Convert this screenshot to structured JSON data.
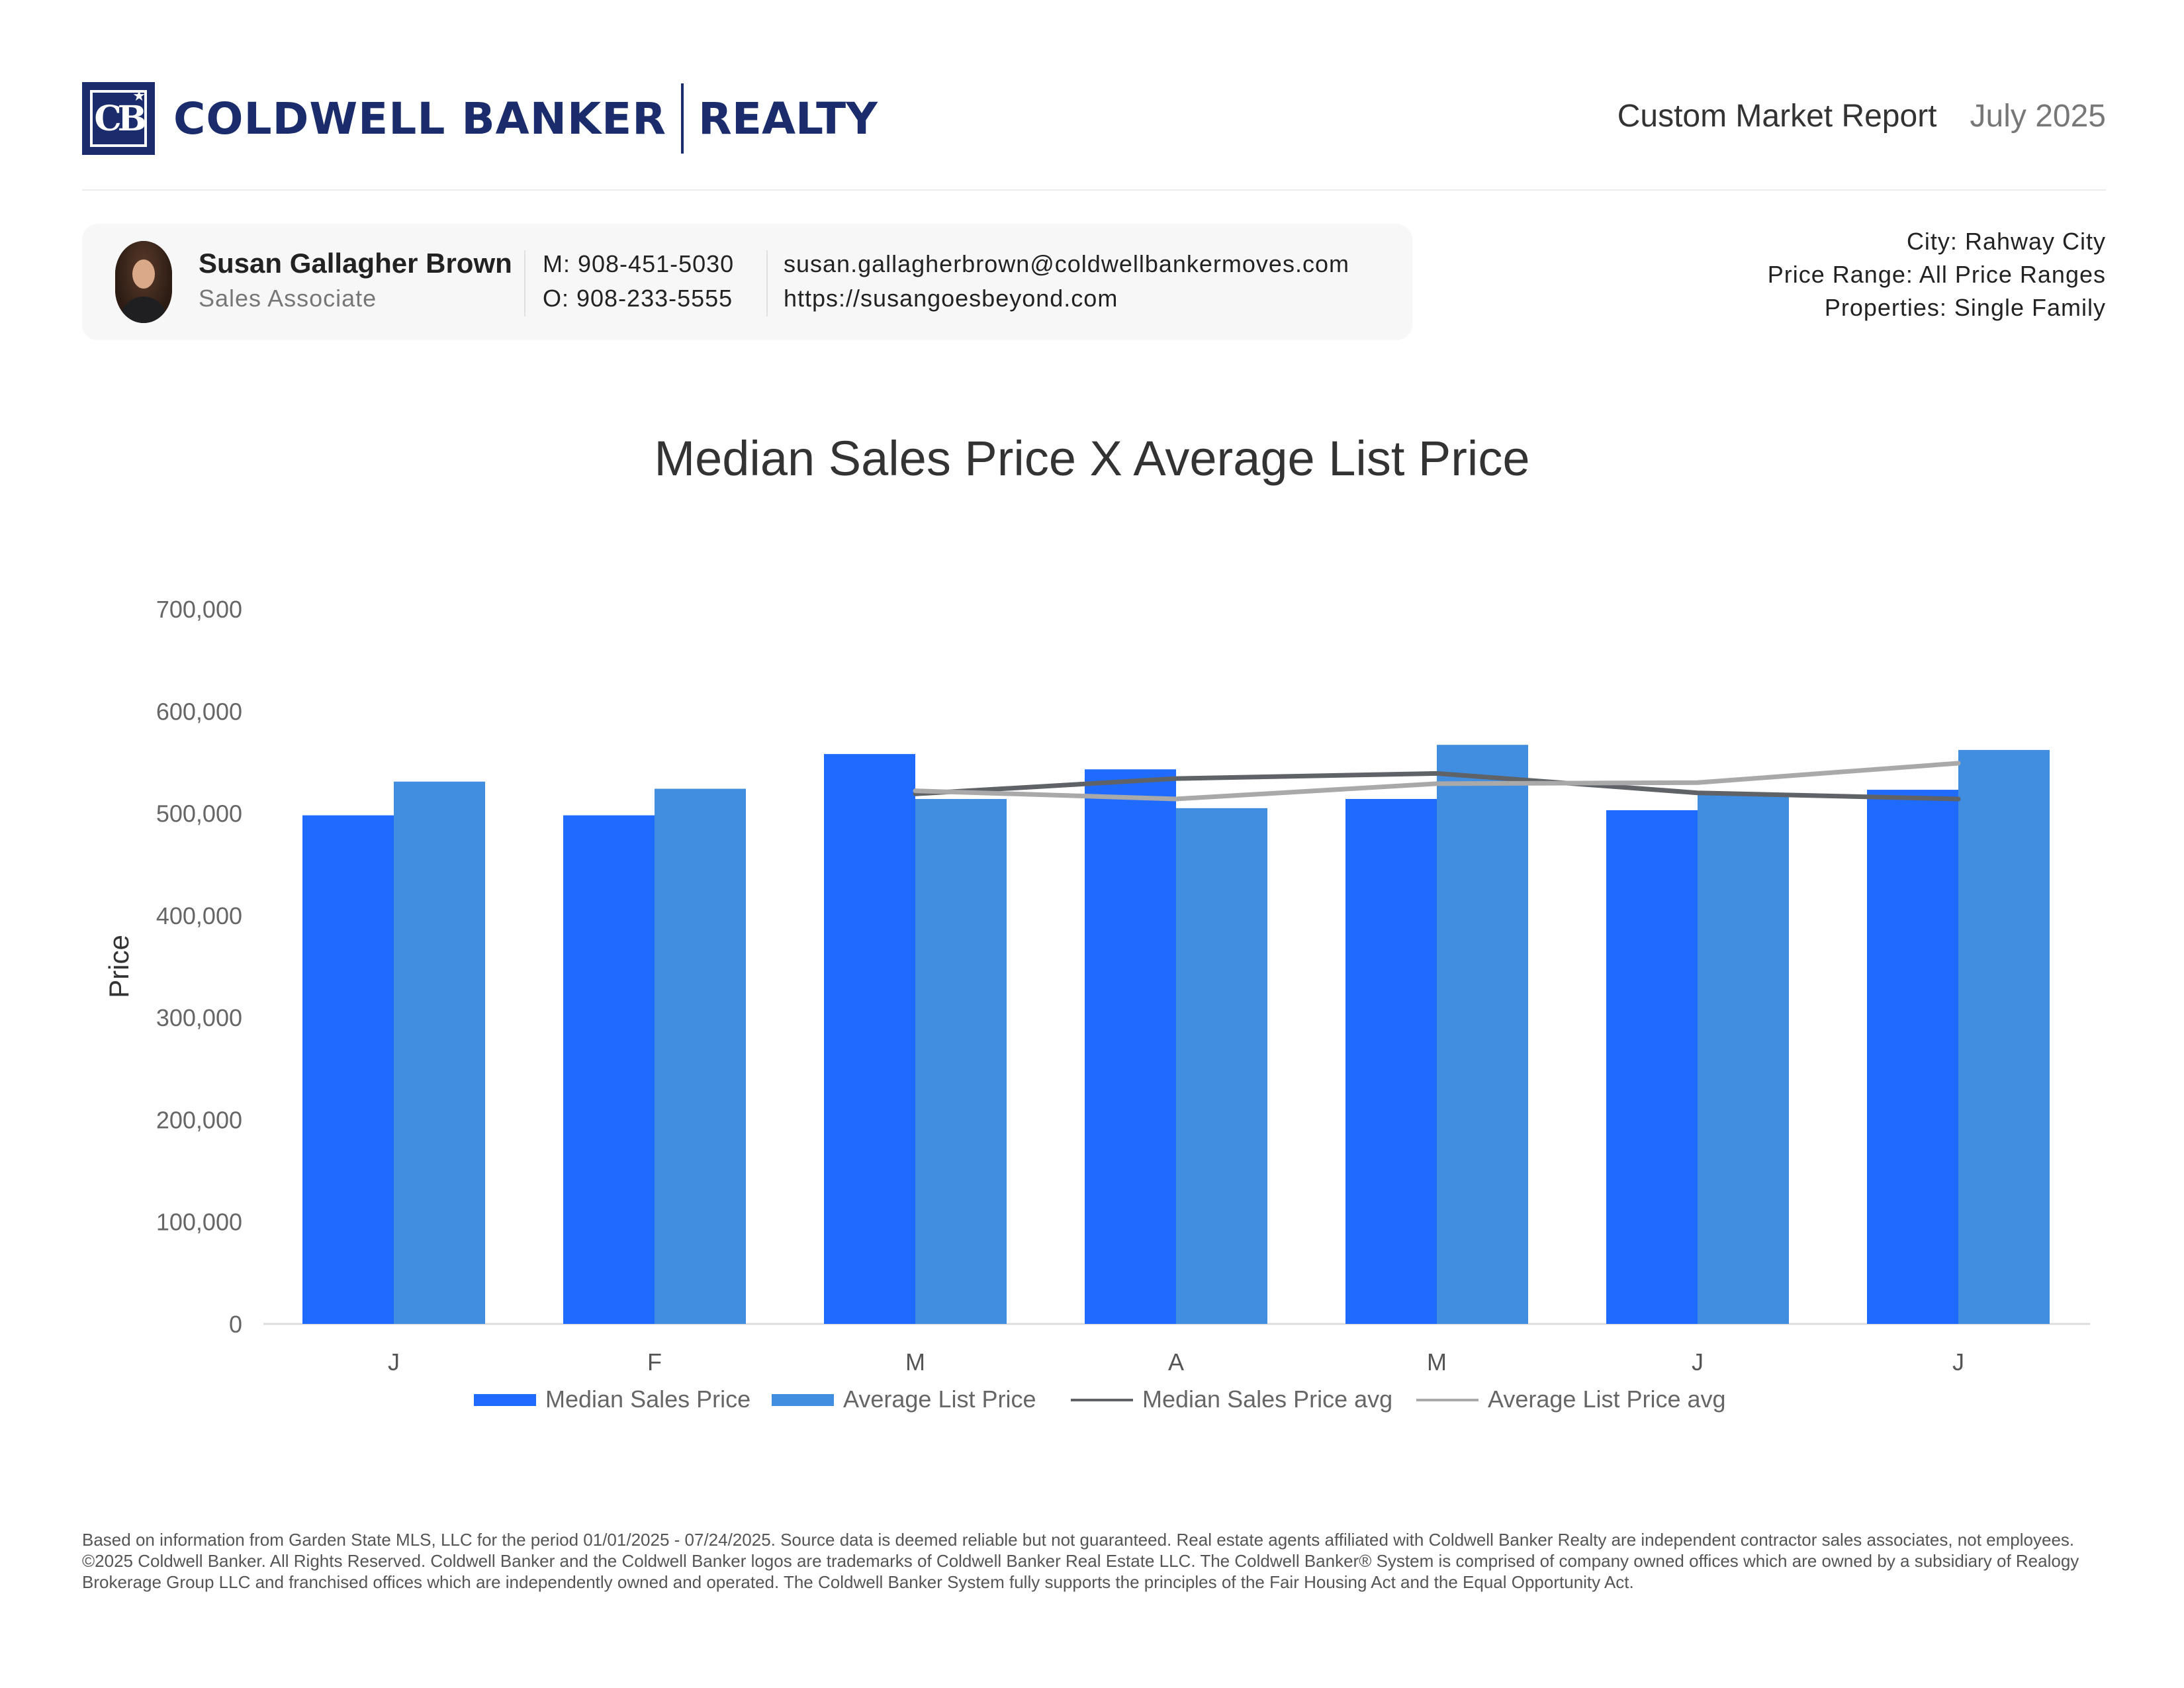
{
  "brand": {
    "logo_name": "COLDWELL BANKER",
    "logo_suffix": "REALTY",
    "logo_mark": "CB"
  },
  "report": {
    "title": "Custom Market Report",
    "date": "July 2025"
  },
  "agent": {
    "name": "Susan Gallagher Brown",
    "role": "Sales Associate",
    "mobile": "M: 908-451-5030",
    "office": "O: 908-233-5555",
    "email": "susan.gallagherbrown@coldwellbankermoves.com",
    "website": "https://susangoesbeyond.com"
  },
  "filters": {
    "city": "City: Rahway City",
    "price_range": "Price Range: All Price Ranges",
    "properties": "Properties: Single Family"
  },
  "colors": {
    "median_bar": "#1f6bff",
    "avg_bar": "#418ee0",
    "median_line": "#5f6368",
    "avg_line": "#a9a9a9",
    "brand": "#1a2c6b"
  },
  "chart_data": {
    "type": "bar",
    "title": "Median Sales Price X Average List Price",
    "xlabel": "",
    "ylabel": "Price",
    "ylim": [
      0,
      700000
    ],
    "yticks": [
      0,
      100000,
      200000,
      300000,
      400000,
      500000,
      600000,
      700000
    ],
    "ytick_labels": [
      "0",
      "100,000",
      "200,000",
      "300,000",
      "400,000",
      "500,000",
      "600,000",
      "700,000"
    ],
    "categories": [
      "J",
      "F",
      "M",
      "A",
      "M",
      "J",
      "J"
    ],
    "series": [
      {
        "name": "Median Sales Price",
        "kind": "bar",
        "color": "#1f6bff",
        "values": [
          498000,
          498000,
          558000,
          543000,
          514000,
          503000,
          523000
        ]
      },
      {
        "name": "Average List Price",
        "kind": "bar",
        "color": "#418ee0",
        "values": [
          531000,
          524000,
          514000,
          505000,
          567000,
          520000,
          562000
        ]
      },
      {
        "name": "Median Sales Price avg",
        "kind": "line",
        "color": "#5f6368",
        "values": [
          null,
          null,
          519000,
          534000,
          539000,
          520000,
          514000
        ]
      },
      {
        "name": "Average List Price avg",
        "kind": "line",
        "color": "#a9a9a9",
        "values": [
          null,
          null,
          522000,
          514000,
          529000,
          530000,
          549000
        ]
      }
    ],
    "legend": "bottom",
    "grid": false
  },
  "footer": {
    "disclaimer": "Based on information from Garden State MLS, LLC for the period 01/01/2025 - 07/24/2025. Source data is deemed reliable but not guaranteed. Real estate agents affiliated with Coldwell Banker Realty are independent contractor sales associates, not employees. ©2025 Coldwell Banker. All Rights Reserved. Coldwell Banker and the Coldwell Banker logos are trademarks of Coldwell Banker Real Estate LLC. The Coldwell Banker® System is comprised of company owned offices which are owned by a subsidiary of Realogy Brokerage Group LLC and franchised offices which are independently owned and operated. The Coldwell Banker System fully supports the principles of the Fair Housing Act and the Equal Opportunity Act."
  }
}
